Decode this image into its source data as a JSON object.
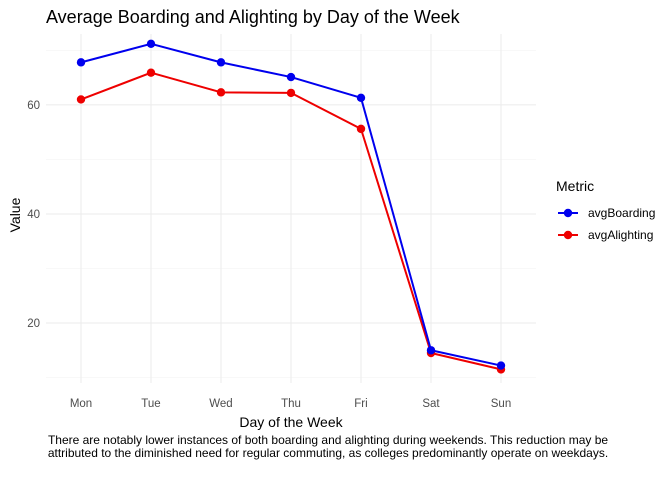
{
  "chart_data": {
    "type": "line",
    "title": "Average Boarding and Alighting by Day of the Week",
    "xlabel": "Day of the Week",
    "ylabel": "Value",
    "categories": [
      "Mon",
      "Tue",
      "Wed",
      "Thu",
      "Fri",
      "Sat",
      "Sun"
    ],
    "series": [
      {
        "name": "avgBoarding",
        "values": [
          67.8,
          71.2,
          67.8,
          65.1,
          61.3,
          15.0,
          12.2
        ],
        "color": "#0000ee"
      },
      {
        "name": "avgAlighting",
        "values": [
          61.0,
          65.9,
          62.3,
          62.2,
          55.6,
          14.5,
          11.5
        ],
        "color": "#ee0000"
      }
    ],
    "ylim": [
      9,
      73
    ],
    "yticks": [
      20,
      40,
      60
    ],
    "grid": true,
    "legend_title": "Metric",
    "legend_position": "right",
    "caption": "There are notably lower instances of both boarding and alighting during weekends. This reduction may be attributed to the diminished need for regular commuting, as colleges predominantly operate on weekdays."
  }
}
